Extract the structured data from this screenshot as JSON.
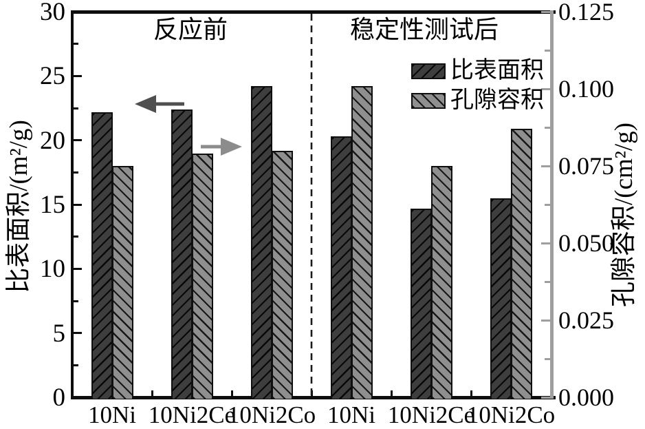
{
  "chart_data": {
    "type": "bar",
    "title": "",
    "sections": [
      {
        "label": "反应前",
        "categories": [
          "10Ni",
          "10Ni2Ce",
          "10Ni2Co"
        ]
      },
      {
        "label": "稳定性测试后",
        "categories": [
          "10Ni",
          "10Ni2Ce",
          "10Ni2Co"
        ]
      }
    ],
    "categories": [
      "10Ni",
      "10Ni2Ce",
      "10Ni2Co",
      "10Ni",
      "10Ni2Ce",
      "10Ni2Co"
    ],
    "series": [
      {
        "name": "比表面积",
        "axis": "left",
        "unit": "m²/g",
        "hatch": "/",
        "fill": "#3e3e3e",
        "values": [
          22.2,
          22.4,
          24.2,
          20.3,
          14.7,
          15.5
        ]
      },
      {
        "name": "孔隙容积",
        "axis": "right",
        "unit": "cm²/g",
        "hatch": "\\",
        "fill": "#8f8f8f",
        "values": [
          0.075,
          0.079,
          0.08,
          0.101,
          0.075,
          0.087
        ]
      }
    ],
    "left_axis": {
      "label": "比表面积/(m²/g)",
      "min": 0,
      "max": 30,
      "major_step": 5,
      "minor_step": 2.5,
      "tick_labels": [
        "0",
        "5",
        "10",
        "15",
        "20",
        "25",
        "30"
      ]
    },
    "right_axis": {
      "label": "孔隙容积/(cm²/g)",
      "min": 0,
      "max": 0.125,
      "major_step": 0.025,
      "minor_step": 0.0125,
      "tick_labels": [
        "0.000",
        "0.025",
        "0.050",
        "0.075",
        "0.100",
        "0.125"
      ]
    },
    "legend": {
      "entries": [
        "比表面积",
        "孔隙容积"
      ],
      "position": "upper-center-right"
    },
    "divider": {
      "style": "dashed",
      "between": "sections"
    },
    "annotations": [
      {
        "type": "arrow",
        "direction": "left",
        "meaning": "points-to-left-axis",
        "color": "#4f4f4f"
      },
      {
        "type": "arrow",
        "direction": "right",
        "meaning": "points-to-right-axis",
        "color": "#8c8c8c"
      }
    ],
    "grid": false
  },
  "colors": {
    "spine": "#0d0d0d",
    "right_spine": "#9e9e9e",
    "bar_dark_fill": "#3e3e3e",
    "bar_light_fill": "#8f8f8f",
    "divider": "#1b1b1b",
    "arrow_left": "#4f4f4f",
    "arrow_right": "#8c8c8c"
  }
}
